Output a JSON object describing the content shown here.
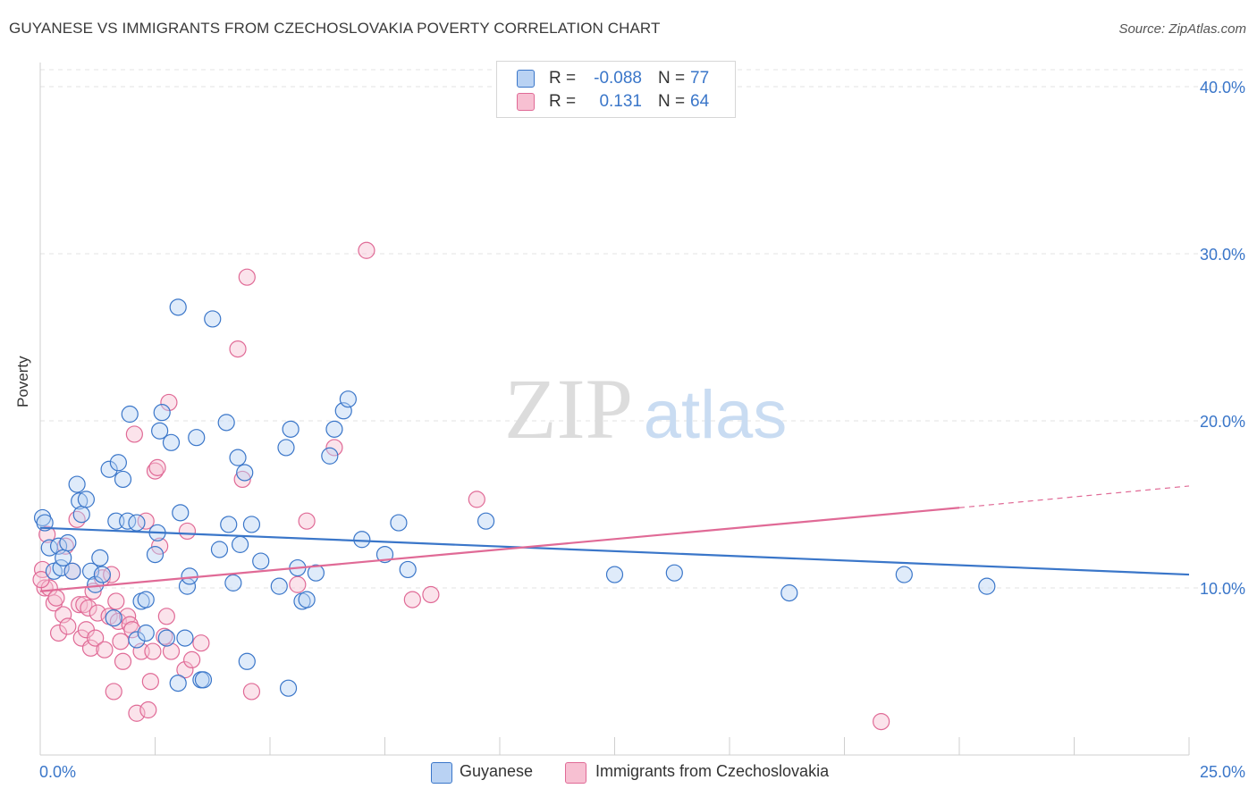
{
  "header": {
    "title": "GUYANESE VS IMMIGRANTS FROM CZECHOSLOVAKIA POVERTY CORRELATION CHART",
    "source": "Source: ZipAtlas.com"
  },
  "watermark": {
    "zip": "ZIP",
    "atlas": "atlas"
  },
  "colors": {
    "blue": "#3a76c9",
    "blue_fill": "#b9d2f3",
    "pink": "#e06a96",
    "pink_fill": "#f7c0d2",
    "axis_text": "#3a76c9"
  },
  "legend_top": {
    "rows": [
      {
        "r_label": "R =",
        "r_value": "-0.088",
        "n_label": "N =",
        "n_value": "77"
      },
      {
        "r_label": "R =",
        "r_value": "0.131",
        "n_label": "N =",
        "n_value": "64"
      }
    ]
  },
  "legend_bottom": {
    "items": [
      {
        "label": "Guyanese"
      },
      {
        "label": "Immigrants from Czechoslovakia"
      }
    ]
  },
  "chart_data": {
    "type": "scatter",
    "title": "GUYANESE VS IMMIGRANTS FROM CZECHOSLOVAKIA POVERTY CORRELATION CHART",
    "xlabel": "",
    "ylabel": "Poverty",
    "xlim": [
      0,
      25
    ],
    "ylim": [
      0,
      42
    ],
    "x_tick_labels": [
      "0.0%",
      "25.0%"
    ],
    "y_ticks": [
      10,
      20,
      30,
      40
    ],
    "y_tick_labels": [
      "10.0%",
      "20.0%",
      "30.0%",
      "40.0%"
    ],
    "grid": true,
    "legend_placement": "bottom",
    "series": [
      {
        "name": "Guyanese",
        "color": "#3a76c9",
        "r": -0.088,
        "n": 77,
        "trend": {
          "x": [
            0,
            25
          ],
          "y": [
            13.6,
            10.8
          ]
        },
        "points": [
          [
            0.05,
            14.2
          ],
          [
            0.1,
            13.9
          ],
          [
            0.2,
            12.4
          ],
          [
            0.3,
            11.0
          ],
          [
            0.4,
            12.5
          ],
          [
            0.45,
            11.2
          ],
          [
            0.5,
            11.8
          ],
          [
            0.6,
            12.7
          ],
          [
            0.7,
            11.0
          ],
          [
            0.8,
            16.2
          ],
          [
            0.85,
            15.2
          ],
          [
            0.9,
            14.4
          ],
          [
            1.0,
            15.3
          ],
          [
            1.1,
            11.0
          ],
          [
            1.2,
            10.2
          ],
          [
            1.3,
            11.8
          ],
          [
            1.35,
            10.8
          ],
          [
            1.5,
            17.1
          ],
          [
            1.6,
            8.2
          ],
          [
            1.65,
            14.0
          ],
          [
            1.7,
            17.5
          ],
          [
            1.8,
            16.5
          ],
          [
            1.9,
            14.0
          ],
          [
            1.95,
            20.4
          ],
          [
            2.1,
            13.9
          ],
          [
            2.1,
            6.9
          ],
          [
            2.2,
            9.2
          ],
          [
            2.3,
            9.3
          ],
          [
            2.3,
            7.3
          ],
          [
            2.5,
            12.0
          ],
          [
            2.55,
            13.3
          ],
          [
            2.6,
            19.4
          ],
          [
            2.65,
            20.5
          ],
          [
            2.75,
            7.0
          ],
          [
            2.85,
            18.7
          ],
          [
            3.0,
            26.8
          ],
          [
            3.0,
            4.3
          ],
          [
            3.05,
            14.5
          ],
          [
            3.15,
            7.0
          ],
          [
            3.2,
            10.1
          ],
          [
            3.25,
            10.7
          ],
          [
            3.4,
            19.0
          ],
          [
            3.5,
            4.5
          ],
          [
            3.55,
            4.5
          ],
          [
            3.75,
            26.1
          ],
          [
            3.9,
            12.3
          ],
          [
            4.05,
            19.9
          ],
          [
            4.1,
            13.8
          ],
          [
            4.2,
            10.3
          ],
          [
            4.3,
            17.8
          ],
          [
            4.35,
            12.6
          ],
          [
            4.45,
            16.9
          ],
          [
            4.5,
            5.6
          ],
          [
            4.6,
            13.8
          ],
          [
            4.8,
            11.6
          ],
          [
            5.2,
            10.1
          ],
          [
            5.35,
            18.4
          ],
          [
            5.45,
            19.5
          ],
          [
            5.4,
            4.0
          ],
          [
            5.6,
            11.2
          ],
          [
            5.7,
            9.2
          ],
          [
            5.8,
            9.3
          ],
          [
            6.0,
            10.9
          ],
          [
            6.3,
            17.9
          ],
          [
            6.4,
            19.5
          ],
          [
            6.6,
            20.6
          ],
          [
            6.7,
            21.3
          ],
          [
            7.0,
            12.9
          ],
          [
            7.5,
            12.0
          ],
          [
            7.8,
            13.9
          ],
          [
            8.0,
            11.1
          ],
          [
            9.7,
            14.0
          ],
          [
            12.5,
            10.8
          ],
          [
            13.8,
            10.9
          ],
          [
            16.3,
            9.7
          ],
          [
            18.8,
            10.8
          ],
          [
            20.6,
            10.1
          ]
        ]
      },
      {
        "name": "Immigrants from Czechoslovakia",
        "color": "#e06a96",
        "r": 0.131,
        "n": 64,
        "trend": {
          "x": [
            0,
            20
          ],
          "y": [
            9.8,
            14.8
          ]
        },
        "trend_dashed": {
          "x": [
            20,
            25
          ],
          "y": [
            14.8,
            16.1
          ]
        },
        "points": [
          [
            0.05,
            11.1
          ],
          [
            0.1,
            10.0
          ],
          [
            0.15,
            13.2
          ],
          [
            0.2,
            10.0
          ],
          [
            0.3,
            9.1
          ],
          [
            0.35,
            9.4
          ],
          [
            0.4,
            7.3
          ],
          [
            0.5,
            8.4
          ],
          [
            0.55,
            12.5
          ],
          [
            0.6,
            7.7
          ],
          [
            0.7,
            11.0
          ],
          [
            0.8,
            14.1
          ],
          [
            0.85,
            9.0
          ],
          [
            0.9,
            7.0
          ],
          [
            0.95,
            9.0
          ],
          [
            1.0,
            7.5
          ],
          [
            1.05,
            8.8
          ],
          [
            1.1,
            6.4
          ],
          [
            1.15,
            9.8
          ],
          [
            1.2,
            7.0
          ],
          [
            1.25,
            8.5
          ],
          [
            1.35,
            10.6
          ],
          [
            1.4,
            6.3
          ],
          [
            1.5,
            8.3
          ],
          [
            1.55,
            10.8
          ],
          [
            1.6,
            3.8
          ],
          [
            1.65,
            9.2
          ],
          [
            1.7,
            8.0
          ],
          [
            1.75,
            6.8
          ],
          [
            1.8,
            5.6
          ],
          [
            1.9,
            8.3
          ],
          [
            1.95,
            7.8
          ],
          [
            2.0,
            7.5
          ],
          [
            2.05,
            19.2
          ],
          [
            2.1,
            2.5
          ],
          [
            2.2,
            6.2
          ],
          [
            2.3,
            14.0
          ],
          [
            2.35,
            2.7
          ],
          [
            2.4,
            4.4
          ],
          [
            2.45,
            6.2
          ],
          [
            2.5,
            17.0
          ],
          [
            2.55,
            17.2
          ],
          [
            2.6,
            12.5
          ],
          [
            2.7,
            7.1
          ],
          [
            2.75,
            8.3
          ],
          [
            2.8,
            21.1
          ],
          [
            2.85,
            6.2
          ],
          [
            3.15,
            5.1
          ],
          [
            3.2,
            13.4
          ],
          [
            3.3,
            5.7
          ],
          [
            3.5,
            6.7
          ],
          [
            4.3,
            24.3
          ],
          [
            4.4,
            16.5
          ],
          [
            4.5,
            28.6
          ],
          [
            4.6,
            3.8
          ],
          [
            5.6,
            10.2
          ],
          [
            5.8,
            14.0
          ],
          [
            6.4,
            18.4
          ],
          [
            7.1,
            30.2
          ],
          [
            8.1,
            9.3
          ],
          [
            8.5,
            9.6
          ],
          [
            9.5,
            15.3
          ],
          [
            18.3,
            2.0
          ],
          [
            0.02,
            10.5
          ]
        ]
      }
    ]
  }
}
